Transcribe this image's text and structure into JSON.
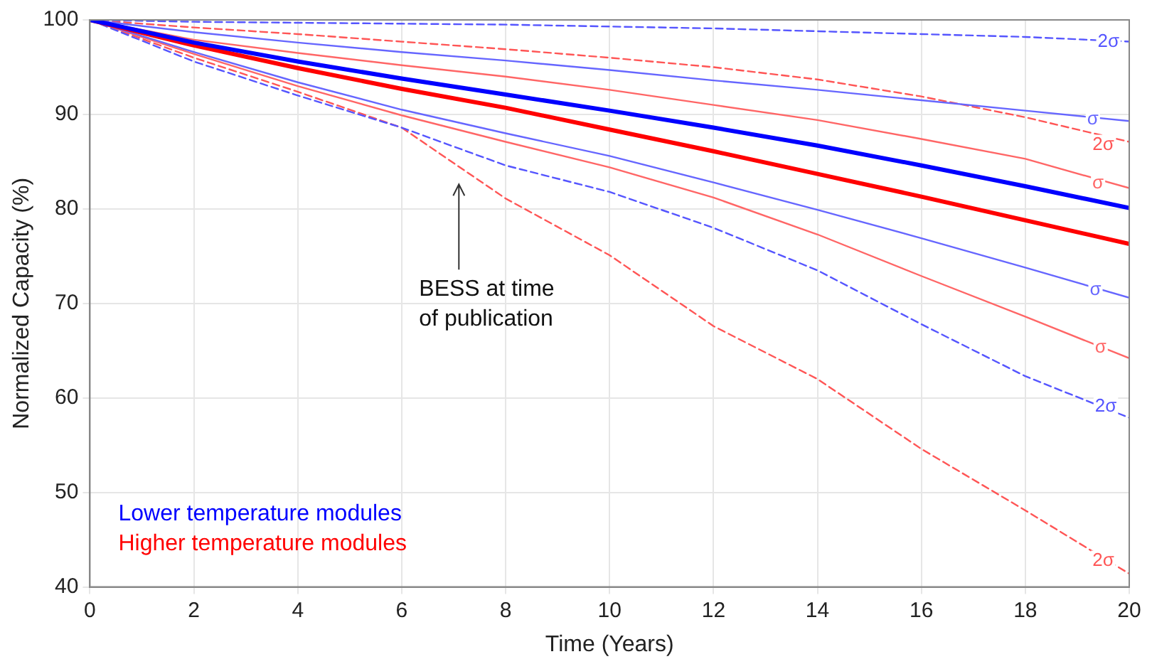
{
  "chart_data": {
    "type": "line",
    "xlabel": "Time (Years)",
    "ylabel": "Normalized Capacity (%)",
    "x": [
      0,
      2,
      4,
      6,
      8,
      10,
      12,
      14,
      16,
      18,
      20
    ],
    "series": [
      {
        "color": "#5555ff",
        "line_style": "dashed",
        "values": [
          100,
          99.8,
          99.7,
          99.6,
          99.5,
          99.3,
          99.1,
          98.8,
          98.5,
          98.2,
          97.7
        ]
      },
      {
        "color": "#6666ff",
        "line_style": "solid",
        "values": [
          100,
          98.7,
          97.6,
          96.6,
          95.7,
          94.7,
          93.6,
          92.6,
          91.5,
          90.4,
          89.3
        ]
      },
      {
        "color": "#ff5555",
        "line_style": "dashed",
        "values": [
          100,
          99.2,
          98.5,
          97.7,
          96.9,
          96.0,
          95.0,
          93.7,
          91.9,
          89.7,
          87.1
        ]
      },
      {
        "color": "#ff6666",
        "line_style": "solid",
        "values": [
          100,
          97.9,
          96.5,
          95.2,
          94.0,
          92.6,
          91.0,
          89.4,
          87.4,
          85.3,
          82.2
        ]
      },
      {
        "name": "Lower temperature modules",
        "color": "#0000ff",
        "line_style": "solid",
        "values": [
          100,
          97.6,
          95.6,
          93.8,
          92.1,
          90.4,
          88.6,
          86.7,
          84.6,
          82.4,
          80.1
        ]
      },
      {
        "name": "Higher temperature modules",
        "color": "#ff0000",
        "line_style": "solid",
        "values": [
          100,
          97.3,
          94.9,
          92.7,
          90.7,
          88.4,
          86.1,
          83.7,
          81.3,
          78.8,
          76.3
        ]
      },
      {
        "color": "#6666ff",
        "line_style": "solid",
        "values": [
          100,
          96.6,
          93.4,
          90.5,
          88.0,
          85.6,
          82.8,
          79.9,
          76.9,
          73.8,
          70.6
        ]
      },
      {
        "color": "#ff6666",
        "line_style": "solid",
        "values": [
          100,
          96.4,
          93.0,
          89.9,
          87.1,
          84.4,
          81.2,
          77.3,
          72.9,
          68.6,
          64.2
        ]
      },
      {
        "color": "#5555ff",
        "line_style": "dashed",
        "values": [
          100,
          95.6,
          92.0,
          88.6,
          84.6,
          81.8,
          78.0,
          73.5,
          67.8,
          62.3,
          57.9
        ]
      },
      {
        "color": "#ff5555",
        "line_style": "dashed",
        "values": [
          100,
          96.0,
          92.4,
          88.6,
          81.1,
          75.1,
          67.6,
          62.0,
          54.6,
          48.1,
          41.4
        ]
      }
    ],
    "xlim": [
      0,
      20
    ],
    "xticks": [
      0,
      2,
      4,
      6,
      8,
      10,
      12,
      14,
      16,
      18,
      20
    ],
    "ylim": [
      40,
      100
    ],
    "yticks": [
      40,
      50,
      60,
      70,
      80,
      90,
      100
    ],
    "grid": true,
    "legend": "bottom left",
    "marker": "none",
    "annotations": [
      {
        "text": "2σ",
        "x": 19.6,
        "y": 97.7
      },
      {
        "text": "σ",
        "x": 19.3,
        "y": 89.5
      },
      {
        "text": "2σ",
        "x": 19.5,
        "y": 86.8
      },
      {
        "text": "σ",
        "x": 19.4,
        "y": 82.7
      },
      {
        "text": "σ",
        "x": 19.35,
        "y": 71.4
      },
      {
        "text": "σ",
        "x": 19.45,
        "y": 65.3
      },
      {
        "text": "2σ",
        "x": 19.55,
        "y": 59.1
      },
      {
        "text": "2σ",
        "x": 19.5,
        "y": 42.8
      },
      "BESS at time of publication"
    ]
  }
}
